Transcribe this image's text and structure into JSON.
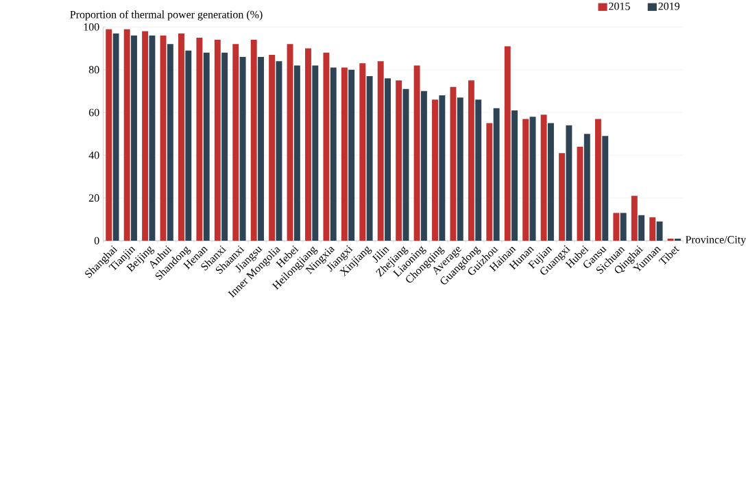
{
  "chart_data": {
    "type": "bar",
    "ylabel": "Proportion of thermal power generation (%)",
    "xlabel": "Province/City",
    "categories": [
      "Shanghai",
      "Tianjin",
      "Beijing",
      "Anhui",
      "Shandong",
      "Henan",
      "Shanxi",
      "Shaanxi",
      "Jiangsu",
      "Inner Mongolia",
      "Hebei",
      "Heilongjiang",
      "Ningxia",
      "Jiangxi",
      "Xinjiang",
      "Jilin",
      "Zhejiang",
      "Liaoning",
      "Chongqing",
      "Average",
      "Guangdong",
      "Guizhou",
      "Hainan",
      "Hunan",
      "Fujian",
      "Guangxi",
      "Hubei",
      "Gansu",
      "Sichuan",
      "Qinghai",
      "Yunnan",
      "Tibet"
    ],
    "series": [
      {
        "name": "2015",
        "color": "#c0312f",
        "values": [
          99,
          99,
          98,
          96,
          97,
          95,
          94,
          92,
          94,
          87,
          92,
          90,
          88,
          81,
          83,
          84,
          75,
          82,
          66,
          72,
          75,
          55,
          91,
          57,
          59,
          41,
          44,
          57,
          13,
          21,
          11,
          1
        ]
      },
      {
        "name": "2019",
        "color": "#2e4353",
        "values": [
          97,
          96,
          96,
          92,
          89,
          88,
          88,
          86,
          86,
          84,
          82,
          82,
          81,
          80,
          77,
          76,
          71,
          70,
          68,
          67,
          66,
          62,
          61,
          58,
          55,
          54,
          50,
          49,
          13,
          12,
          9,
          1
        ]
      }
    ],
    "ylim": [
      0,
      100
    ],
    "yticks": [
      0,
      20,
      40,
      60,
      80,
      100
    ],
    "grid": "y",
    "legend": "top right"
  }
}
